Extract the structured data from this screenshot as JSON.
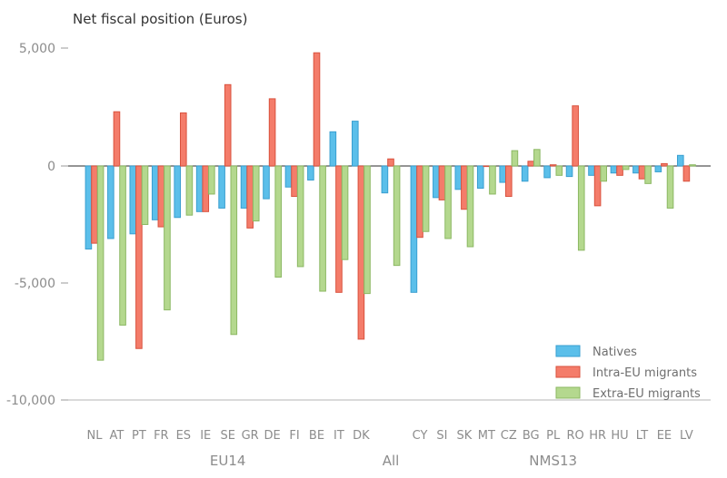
{
  "chart_data": {
    "type": "bar",
    "title": "Net fiscal position (Euros)",
    "xlabel": "",
    "ylabel": "",
    "ylim": [
      -10000,
      5000
    ],
    "yticks": [
      5000,
      0,
      -5000,
      -10000
    ],
    "ytick_labels": [
      "5,000",
      "0",
      "-5,000",
      "-10,000"
    ],
    "grid": false,
    "legend_position": "bottom-right",
    "categories": [
      "NL",
      "AT",
      "PT",
      "FR",
      "ES",
      "IE",
      "SE",
      "GR",
      "DE",
      "FI",
      "BE",
      "IT",
      "DK",
      "All",
      "CY",
      "SI",
      "SK",
      "MT",
      "CZ",
      "BG",
      "PL",
      "RO",
      "HR",
      "HU",
      "LT",
      "EE",
      "LV"
    ],
    "groups": [
      {
        "label": "EU14",
        "from": "NL",
        "to": "DK"
      },
      {
        "label": "NMS13",
        "from": "CY",
        "to": "LV"
      }
    ],
    "series": [
      {
        "name": "Natives",
        "color": "#5bbfea",
        "values": [
          -3550,
          -3100,
          -2900,
          -2300,
          -2200,
          -1950,
          -1800,
          -1800,
          -1400,
          -900,
          -600,
          1450,
          1900,
          -1150,
          -5400,
          -1350,
          -1000,
          -950,
          -700,
          -650,
          -500,
          -450,
          -400,
          -300,
          -300,
          -250,
          450
        ]
      },
      {
        "name": "Intra-EU migrants",
        "color": "#f47c6a",
        "values": [
          -3300,
          2300,
          -7800,
          -2600,
          2250,
          -1950,
          3450,
          -2650,
          2850,
          -1300,
          4800,
          -5400,
          -7400,
          300,
          -3050,
          -1450,
          -1850,
          0,
          -1300,
          200,
          50,
          2550,
          -1700,
          -400,
          -550,
          100,
          -650
        ]
      },
      {
        "name": "Extra-EU migrants",
        "color": "#b4d88e",
        "values": [
          -8300,
          -6800,
          -2500,
          -6150,
          -2100,
          -1200,
          -7200,
          -2350,
          -4750,
          -4300,
          -5350,
          -4000,
          -5450,
          -4250,
          -2800,
          -3100,
          -3450,
          -1200,
          650,
          700,
          -400,
          -3600,
          -650,
          -150,
          -750,
          -1800,
          50
        ]
      }
    ]
  }
}
